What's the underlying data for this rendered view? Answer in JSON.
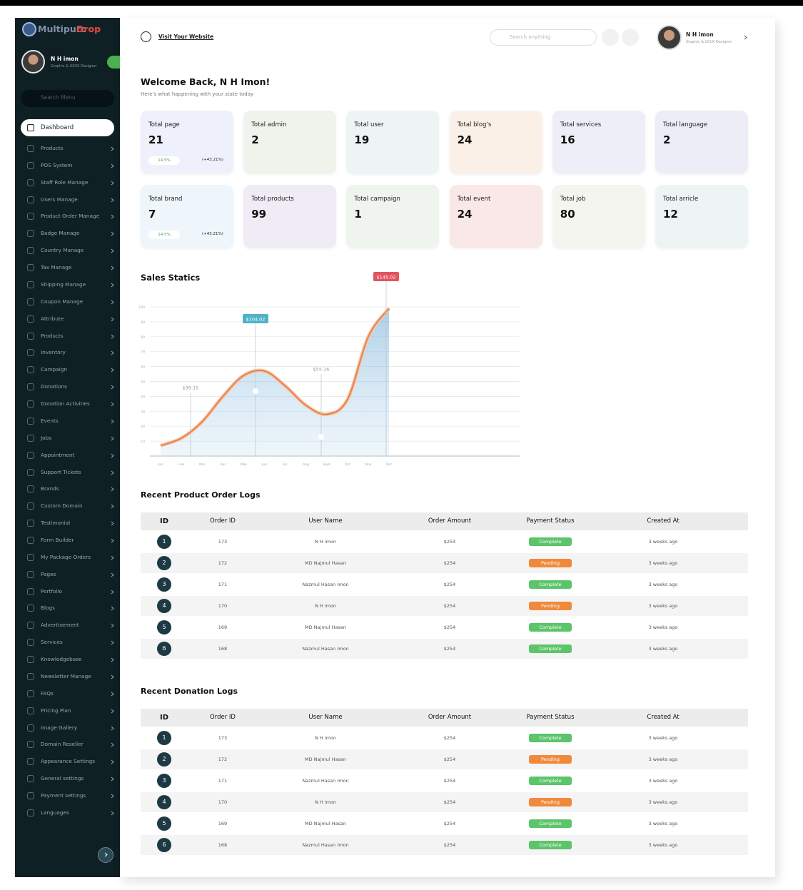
{
  "brand": {
    "name": "Multipurc",
    "accent": "Drop"
  },
  "sidebar_user": {
    "name": "N H imon",
    "role": "Graphic & UI/UX Designer"
  },
  "sidebar_search": "Search Menu",
  "menu": [
    "Dashboard",
    "Products",
    "POS System",
    "Staff Role Manage",
    "Users Manage",
    "Product Order Manage",
    "Badge Manage",
    "Country Manage",
    "Tax Manage",
    "Shipping Manage",
    "Coupon Manage",
    "Attribute",
    "Products",
    "Inventory",
    "Campaign",
    "Donations",
    "Donation Activities",
    "Events",
    "Jobs",
    "Appointment",
    "Support Tickets",
    "Brands",
    "Custom Domain",
    "Testimonial",
    "Form Builder",
    "My Package Orders",
    "Pages",
    "Portfolio",
    "Blogs",
    "Advertisement",
    "Services",
    "Knowledgebase",
    "Newsletter Manage",
    "FAQs",
    "Pricing Plan",
    "Image Gallery",
    "Domain Reseller",
    "Appearance Settings",
    "General settings",
    "Payment settings",
    "Languages"
  ],
  "topbar": {
    "link": "Visit Your Website",
    "search": "Search anything",
    "user_name": "N H imon",
    "user_role": "Graphic & UI/UX Designer"
  },
  "welcome": {
    "title": "Welcome Back, N H Imon!",
    "subtitle": "Here's what happening with your state today"
  },
  "stats": [
    {
      "label": "Total page",
      "value": "21",
      "change": "14.5%",
      "growth": "(+43.21%)",
      "color": "#eef0fb"
    },
    {
      "label": "Total admin",
      "value": "2",
      "color": "#eef3ec"
    },
    {
      "label": "Total user",
      "value": "19",
      "color": "#eef3f4"
    },
    {
      "label": "Total blog's",
      "value": "24",
      "color": "#fbf0e8"
    },
    {
      "label": "Total services",
      "value": "16",
      "color": "#eeeef8"
    },
    {
      "label": "Total language",
      "value": "2",
      "color": "#ededf7"
    },
    {
      "label": "Total brand",
      "value": "7",
      "change": "14.5%",
      "growth": "(+43.21%)",
      "color": "#eef6fb"
    },
    {
      "label": "Total products",
      "value": "99",
      "color": "#efecf6"
    },
    {
      "label": "Total campaign",
      "value": "1",
      "color": "#eff4ee"
    },
    {
      "label": "Total event",
      "value": "24",
      "color": "#fae8e8"
    },
    {
      "label": "Total job",
      "value": "80",
      "color": "#f4f5ee"
    },
    {
      "label": "Total arricle",
      "value": "12",
      "color": "#eef4f4"
    }
  ],
  "chart_data": {
    "type": "line",
    "title": "Sales Statics",
    "categories": [
      "Jan",
      "Feb",
      "Mar",
      "Apr",
      "May",
      "Jun",
      "Jul",
      "Aug",
      "Sept",
      "Oct",
      "Nov",
      "Dec"
    ],
    "values": [
      7,
      12,
      23,
      40,
      54,
      57,
      47,
      34,
      28,
      38,
      80,
      99
    ],
    "color": "#e8804a",
    "ylim": [
      0,
      100
    ],
    "yticks": [
      10,
      20,
      30,
      40,
      50,
      60,
      70,
      80,
      90,
      100
    ],
    "grid": true,
    "annotations": [
      "$39.15",
      "$104.02",
      "$55.16",
      "$145.02"
    ]
  },
  "tables": [
    {
      "title": "Recent Product Order Logs",
      "columns": [
        "ID",
        "Order ID",
        "User Name",
        "Order Amount",
        "Payment Status",
        "Created At"
      ],
      "rows": [
        [
          1,
          173,
          "N H imon",
          "$254",
          "Complete",
          "3 weeks ago"
        ],
        [
          2,
          172,
          "MD Najmul Hasan",
          "$254",
          "Pending",
          "3 weeks ago"
        ],
        [
          3,
          171,
          "Nazmul Hasan Imon",
          "$254",
          "Complete",
          "3 weeks ago"
        ],
        [
          4,
          170,
          "N H imon",
          "$254",
          "Pending",
          "3 weeks ago"
        ],
        [
          5,
          169,
          "MD Najmul Hasan",
          "$254",
          "Complete",
          "3 weeks ago"
        ],
        [
          6,
          168,
          "Nazmul Hasan Imon",
          "$254",
          "Complete",
          "3 weeks ago"
        ]
      ],
      "status_colors": [
        "#5cc46a",
        "#ef8a3c",
        "#5cc46a",
        "#ef8a3c",
        "#5cc46a",
        "#5cc46a"
      ]
    },
    {
      "title": "Recent Donation Logs",
      "columns": [
        "ID",
        "Order ID",
        "User Name",
        "Order Amount",
        "Payment Status",
        "Created At"
      ],
      "rows": [
        [
          1,
          173,
          "N H imon",
          "$254",
          "Complete",
          "3 weeks ago"
        ],
        [
          2,
          172,
          "MD Najmul Hasan",
          "$254",
          "Pending",
          "3 weeks ago"
        ],
        [
          3,
          171,
          "Nazmul Hasan Imon",
          "$254",
          "Complete",
          "3 weeks ago"
        ],
        [
          4,
          170,
          "N H imon",
          "$254",
          "Pending",
          "3 weeks ago"
        ],
        [
          5,
          169,
          "MD Najmul Hasan",
          "$254",
          "Complete",
          "3 weeks ago"
        ],
        [
          6,
          168,
          "Nazmul Hasan Imon",
          "$254",
          "Complete",
          "3 weeks ago"
        ]
      ],
      "status_colors": [
        "#5cc46a",
        "#ef8a3c",
        "#5cc46a",
        "#ef8a3c",
        "#5cc46a",
        "#5cc46a"
      ]
    }
  ]
}
